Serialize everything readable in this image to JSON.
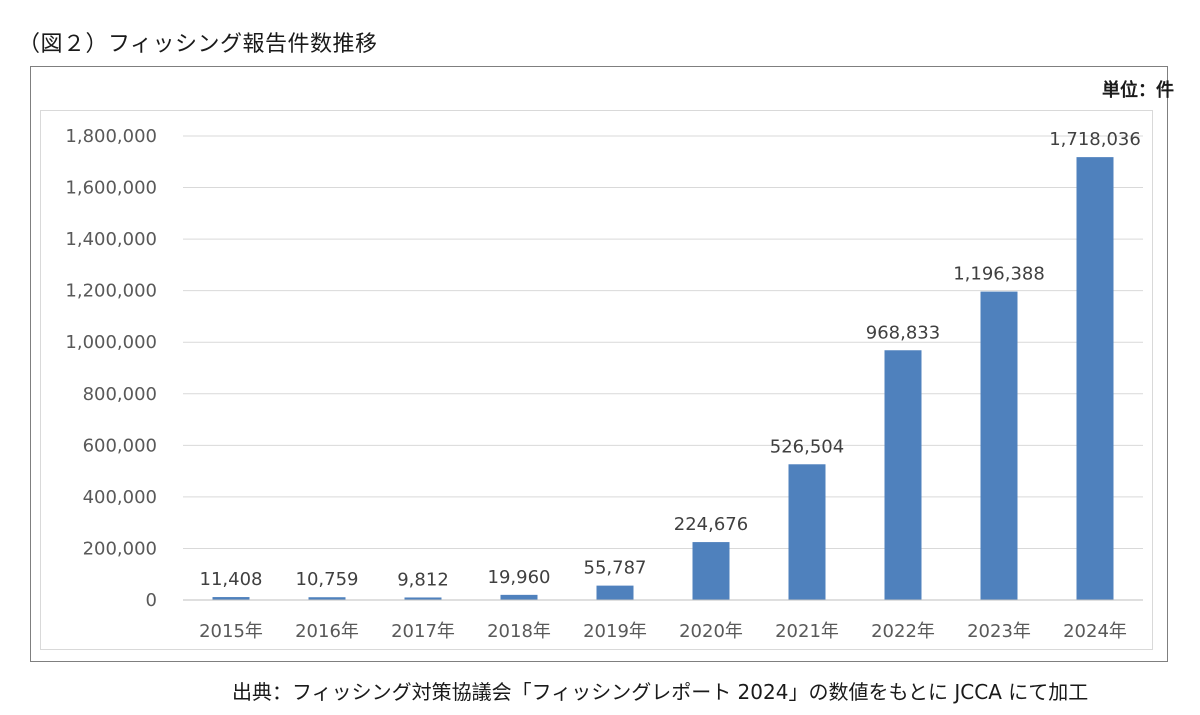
{
  "figure": {
    "title": "（図２）フィッシング報告件数推移",
    "unit_label": "単位：件",
    "source": "出典：フィッシング対策協議会「フィッシングレポート 2024」の数値をもとに JCCA にて加工"
  },
  "chart_data": {
    "type": "bar",
    "categories": [
      "2015年",
      "2016年",
      "2017年",
      "2018年",
      "2019年",
      "2020年",
      "2021年",
      "2022年",
      "2023年",
      "2024年"
    ],
    "values": [
      11408,
      10759,
      9812,
      19960,
      55787,
      224676,
      526504,
      968833,
      1196388,
      1718036
    ],
    "data_labels": [
      "11,408",
      "10,759",
      "9,812",
      "19,960",
      "55,787",
      "224,676",
      "526,504",
      "968,833",
      "1,196,388",
      "1,718,036"
    ],
    "yticks": [
      0,
      200000,
      400000,
      600000,
      800000,
      1000000,
      1200000,
      1400000,
      1600000,
      1800000
    ],
    "ytick_labels": [
      "0",
      "200,000",
      "400,000",
      "600,000",
      "800,000",
      "1,000,000",
      "1,200,000",
      "1,400,000",
      "1,600,000",
      "1,800,000"
    ],
    "ylim": [
      0,
      1800000
    ],
    "grid": true,
    "bar_color": "#4f81bd",
    "grid_color": "#d9d9d9"
  }
}
